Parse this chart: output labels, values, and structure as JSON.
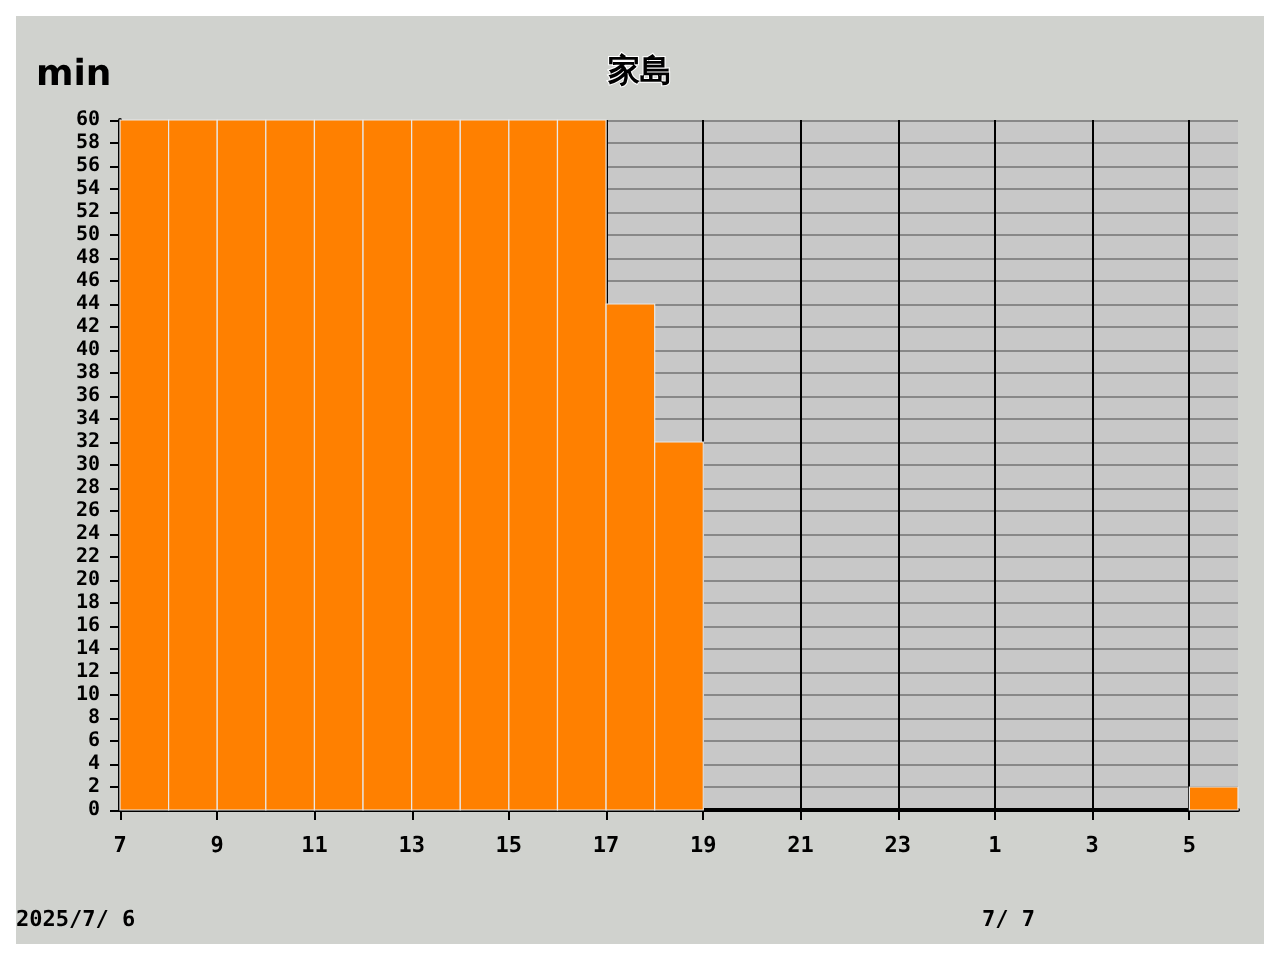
{
  "chart_data": {
    "type": "histogram",
    "title": "家島",
    "ylabel": "min",
    "bins": [
      "2025-07-06T07:00",
      "2025-07-06T08:00",
      "2025-07-06T09:00",
      "2025-07-06T10:00",
      "2025-07-06T11:00",
      "2025-07-06T12:00",
      "2025-07-06T13:00",
      "2025-07-06T14:00",
      "2025-07-06T15:00",
      "2025-07-06T16:00",
      "2025-07-06T17:00",
      "2025-07-06T18:00",
      "2025-07-06T19:00",
      "2025-07-06T20:00",
      "2025-07-06T21:00",
      "2025-07-06T22:00",
      "2025-07-06T23:00",
      "2025-07-07T00:00",
      "2025-07-07T01:00",
      "2025-07-07T02:00",
      "2025-07-07T03:00",
      "2025-07-07T04:00",
      "2025-07-07T05:00",
      "2025-07-07T06:00"
    ],
    "values": [
      60,
      60,
      60,
      60,
      60,
      60,
      60,
      60,
      60,
      60,
      44,
      32,
      0,
      0,
      0,
      0,
      0,
      0,
      0,
      0,
      0,
      0,
      2
    ],
    "color": "#ff8000",
    "xlim": [
      "2025-07-06T07:00",
      "2025-07-07T06:00"
    ],
    "xticks": [
      {
        "value": "2025-07-06T07:00",
        "label": "7"
      },
      {
        "value": "2025-07-06T09:00",
        "label": "9"
      },
      {
        "value": "2025-07-06T11:00",
        "label": "11"
      },
      {
        "value": "2025-07-06T13:00",
        "label": "13"
      },
      {
        "value": "2025-07-06T15:00",
        "label": "15"
      },
      {
        "value": "2025-07-06T17:00",
        "label": "17"
      },
      {
        "value": "2025-07-06T19:00",
        "label": "19"
      },
      {
        "value": "2025-07-06T21:00",
        "label": "21"
      },
      {
        "value": "2025-07-06T23:00",
        "label": "23"
      },
      {
        "value": "2025-07-07T01:00",
        "label": "1"
      },
      {
        "value": "2025-07-07T03:00",
        "label": "3"
      },
      {
        "value": "2025-07-07T05:00",
        "label": "5"
      }
    ],
    "ylim": [
      0,
      60
    ],
    "yticks": [
      0,
      2,
      4,
      6,
      8,
      10,
      12,
      14,
      16,
      18,
      20,
      22,
      24,
      26,
      28,
      30,
      32,
      34,
      36,
      38,
      40,
      42,
      44,
      46,
      48,
      50,
      52,
      54,
      56,
      58,
      60
    ],
    "grid": true,
    "annotations": [
      "2025/7/ 6",
      "7/ 7"
    ]
  }
}
